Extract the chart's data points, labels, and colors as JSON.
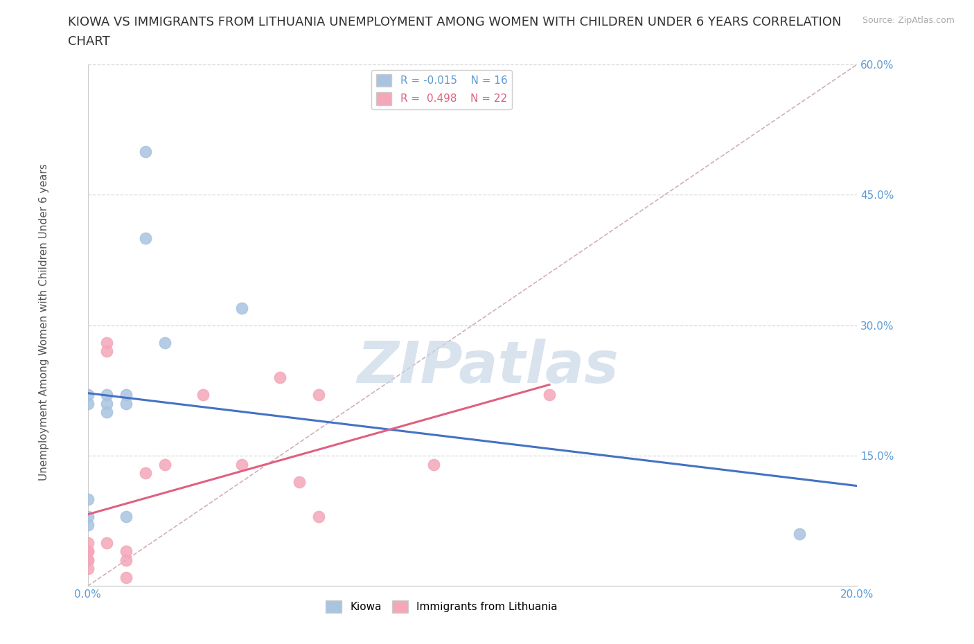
{
  "title_line1": "KIOWA VS IMMIGRANTS FROM LITHUANIA UNEMPLOYMENT AMONG WOMEN WITH CHILDREN UNDER 6 YEARS CORRELATION",
  "title_line2": "CHART",
  "source": "Source: ZipAtlas.com",
  "ylabel": "Unemployment Among Women with Children Under 6 years",
  "xlim": [
    0.0,
    0.2
  ],
  "ylim": [
    0.0,
    0.6
  ],
  "xticks": [
    0.0,
    0.05,
    0.1,
    0.15,
    0.2
  ],
  "yticks": [
    0.0,
    0.15,
    0.3,
    0.45,
    0.6
  ],
  "kiowa_x": [
    0.0,
    0.0,
    0.0,
    0.0,
    0.0,
    0.005,
    0.005,
    0.005,
    0.01,
    0.01,
    0.01,
    0.015,
    0.015,
    0.02,
    0.04,
    0.185
  ],
  "kiowa_y": [
    0.22,
    0.21,
    0.1,
    0.08,
    0.07,
    0.22,
    0.21,
    0.2,
    0.22,
    0.21,
    0.08,
    0.5,
    0.4,
    0.28,
    0.32,
    0.06
  ],
  "lithuania_x": [
    0.0,
    0.0,
    0.0,
    0.0,
    0.0,
    0.0,
    0.005,
    0.005,
    0.005,
    0.01,
    0.01,
    0.01,
    0.015,
    0.02,
    0.03,
    0.04,
    0.05,
    0.055,
    0.06,
    0.06,
    0.09,
    0.12
  ],
  "lithuania_y": [
    0.05,
    0.04,
    0.04,
    0.03,
    0.03,
    0.02,
    0.28,
    0.27,
    0.05,
    0.04,
    0.03,
    0.01,
    0.13,
    0.14,
    0.22,
    0.14,
    0.24,
    0.12,
    0.22,
    0.08,
    0.14,
    0.22
  ],
  "kiowa_color": "#a8c4e0",
  "lithuania_color": "#f4a7b9",
  "kiowa_line_color": "#4472c4",
  "lithuania_line_color": "#e06080",
  "diag_line_color": "#d0b0b8",
  "kiowa_R": -0.015,
  "kiowa_N": 16,
  "lithuania_R": 0.498,
  "lithuania_N": 22,
  "background_color": "#ffffff",
  "grid_color": "#d8d8d8",
  "title_fontsize": 13,
  "axis_label_fontsize": 11,
  "tick_fontsize": 11,
  "marker_size": 140,
  "tick_color": "#5b9bd5",
  "watermark_text": "ZIPatlas",
  "watermark_color": "#c8d8e8",
  "watermark_fontsize": 60
}
